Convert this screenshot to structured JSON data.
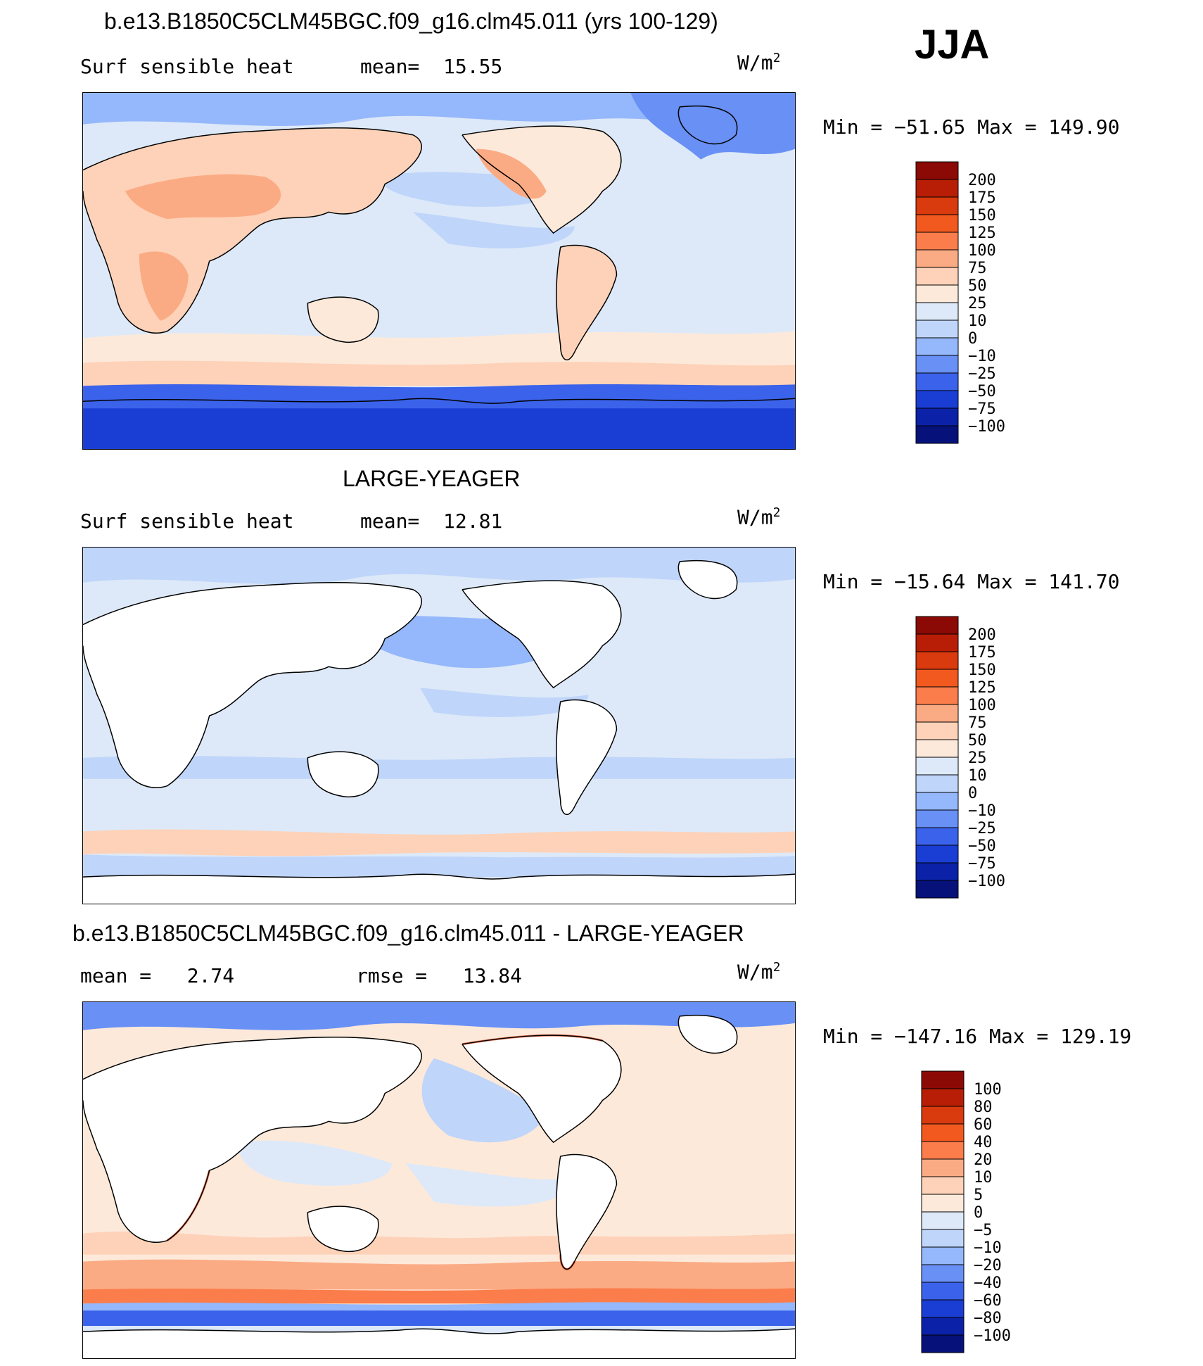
{
  "season": "JJA",
  "panels": [
    {
      "id": "model",
      "title": "b.e13.B1850C5CLM45BGC.f09_g16.clm45.011 (yrs 100-129)",
      "left_label": "Surf sensible heat",
      "center_label": "mean=  15.55",
      "units_prefix": "W/m",
      "units_sup": "2",
      "minmax": "Min = −51.65 Max = 149.90",
      "levels": [
        "200",
        "175",
        "150",
        "125",
        "100",
        "75",
        "50",
        "25",
        "10",
        "0",
        "−10",
        "−25",
        "−50",
        "−75",
        "−100"
      ],
      "colors": [
        "#8c0a05",
        "#b81e06",
        "#d93a0e",
        "#f2591f",
        "#fa7d4b",
        "#fbab84",
        "#fdd2b8",
        "#fde9da",
        "#dde9f8",
        "#bfd5fa",
        "#95b7fb",
        "#6890f5",
        "#3b62ea",
        "#1a3ed4",
        "#0b22a8",
        "#06127a"
      ],
      "maps": "map-model"
    },
    {
      "id": "obs",
      "title": "LARGE-YEAGER",
      "left_label": "Surf sensible heat",
      "center_label": "mean=  12.81",
      "units_prefix": "W/m",
      "units_sup": "2",
      "minmax": "Min = −15.64 Max = 141.70",
      "levels": [
        "200",
        "175",
        "150",
        "125",
        "100",
        "75",
        "50",
        "25",
        "10",
        "0",
        "−10",
        "−25",
        "−50",
        "−75",
        "−100"
      ],
      "colors": [
        "#8c0a05",
        "#b81e06",
        "#d93a0e",
        "#f2591f",
        "#fa7d4b",
        "#fbab84",
        "#fdd2b8",
        "#fde9da",
        "#dde9f8",
        "#bfd5fa",
        "#95b7fb",
        "#6890f5",
        "#3b62ea",
        "#1a3ed4",
        "#0b22a8",
        "#06127a"
      ]
    },
    {
      "id": "diff",
      "title": "b.e13.B1850C5CLM45BGC.f09_g16.clm45.011 - LARGE-YEAGER",
      "left_label": "mean =   2.74",
      "center_label": "rmse =   13.84",
      "units_prefix": "W/m",
      "units_sup": "2",
      "minmax": "Min = −147.16 Max = 129.19",
      "levels": [
        "100",
        "80",
        "60",
        "40",
        "20",
        "10",
        "5",
        "0",
        "−5",
        "−10",
        "−20",
        "−40",
        "−60",
        "−80",
        "−100"
      ],
      "colors": [
        "#8c0a05",
        "#b81e06",
        "#d93a0e",
        "#f2591f",
        "#fa7d4b",
        "#fbab84",
        "#fdd2b8",
        "#fde9da",
        "#dde9f8",
        "#bfd5fa",
        "#95b7fb",
        "#6890f5",
        "#3b62ea",
        "#1a3ed4",
        "#0b22a8",
        "#06127a"
      ]
    }
  ]
}
